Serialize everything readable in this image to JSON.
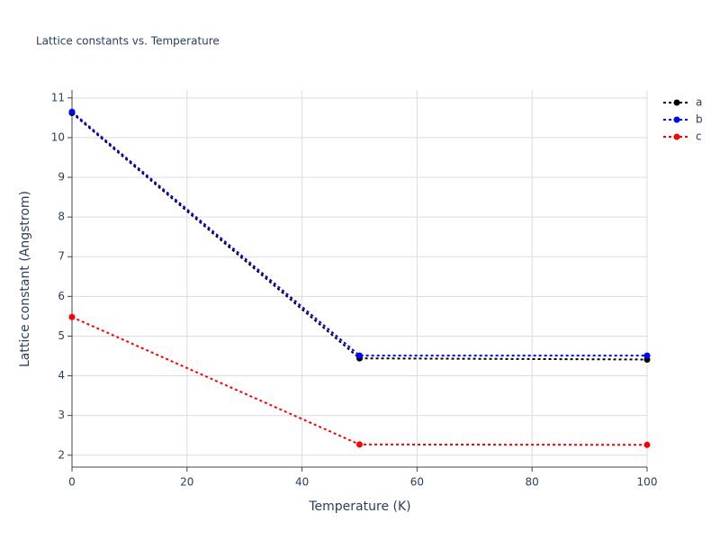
{
  "chart_data": {
    "type": "line",
    "title": "Lattice constants vs. Temperature",
    "x_label": "Temperature (K)",
    "y_label": "Lattice constant (Angstrom)",
    "x": [
      0,
      50,
      100
    ],
    "series": [
      {
        "name": "a",
        "color": "#000000",
        "values": [
          10.62,
          4.44,
          4.41
        ]
      },
      {
        "name": "b",
        "color": "#0000ff",
        "values": [
          10.65,
          4.51,
          4.51
        ]
      },
      {
        "name": "c",
        "color": "#ff0000",
        "values": [
          5.48,
          2.27,
          2.26
        ]
      }
    ],
    "xlim": [
      0,
      100
    ],
    "xticks": [
      0,
      20,
      40,
      60,
      80,
      100
    ],
    "ylim": [
      1.7,
      11.2
    ],
    "yticks": [
      2,
      3,
      4,
      5,
      6,
      7,
      8,
      9,
      10,
      11
    ],
    "grid": true,
    "line_style": "dotted",
    "legend": "right"
  }
}
